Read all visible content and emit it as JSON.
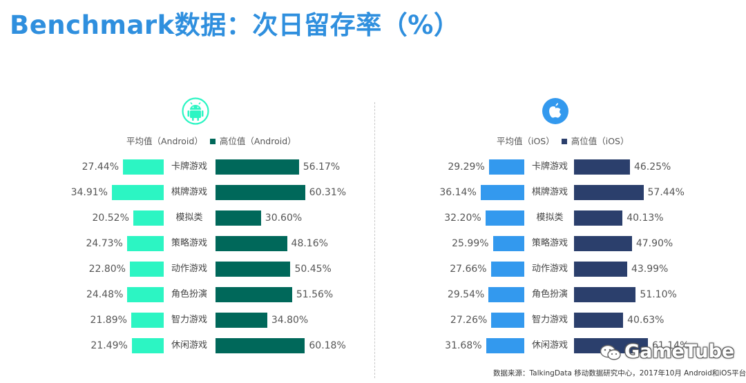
{
  "title": "Benchmark数据：次日留存率（%）",
  "colors": {
    "title": "#2f8fde",
    "android_avg": "#2cf5c3",
    "android_high": "#00685a",
    "ios_avg": "#3399ee",
    "ios_high": "#2b3f6c"
  },
  "chart_data": [
    {
      "type": "bar",
      "platform": "Android",
      "legend": {
        "avg": "平均值（Android）",
        "high": "高位值（Android）"
      },
      "categories": [
        "卡牌游戏",
        "棋牌游戏",
        "模拟类",
        "策略游戏",
        "动作游戏",
        "角色扮演",
        "智力游戏",
        "休闲游戏"
      ],
      "series": [
        {
          "name": "平均值（Android）",
          "values": [
            27.44,
            34.91,
            20.52,
            24.73,
            22.8,
            24.48,
            21.89,
            21.49
          ],
          "labels": [
            "27.44%",
            "34.91%",
            "20.52%",
            "24.73%",
            "22.80%",
            "24.48%",
            "21.89%",
            "21.49%"
          ]
        },
        {
          "name": "高位值（Android）",
          "values": [
            56.17,
            60.31,
            30.6,
            48.16,
            50.45,
            51.56,
            34.8,
            60.18
          ],
          "labels": [
            "56.17%",
            "60.31%",
            "30.60%",
            "48.16%",
            "50.45%",
            "51.56%",
            "34.80%",
            "60.18%"
          ]
        }
      ]
    },
    {
      "type": "bar",
      "platform": "iOS",
      "legend": {
        "avg": "平均值（iOS）",
        "high": "高位值（iOS）"
      },
      "categories": [
        "卡牌游戏",
        "棋牌游戏",
        "模拟类",
        "策略游戏",
        "动作游戏",
        "角色扮演",
        "智力游戏",
        "休闲游戏"
      ],
      "series": [
        {
          "name": "平均值（iOS）",
          "values": [
            29.29,
            36.14,
            32.2,
            25.99,
            27.66,
            29.54,
            27.26,
            31.68
          ],
          "labels": [
            "29.29%",
            "36.14%",
            "32.20%",
            "25.99%",
            "27.66%",
            "29.54%",
            "27.26%",
            "31.68%"
          ]
        },
        {
          "name": "高位值（iOS）",
          "values": [
            46.25,
            57.44,
            40.13,
            47.9,
            43.99,
            51.1,
            40.63,
            61.14
          ],
          "labels": [
            "46.25%",
            "57.44%",
            "40.13%",
            "47.90%",
            "43.99%",
            "51.10%",
            "40.63%",
            "61.14%"
          ]
        }
      ]
    }
  ],
  "icons": {
    "android": "android-logo-icon",
    "ios": "apple-logo-icon",
    "watermark": "wechat-icon"
  },
  "watermark": "GameTube",
  "source": "数据来源：TalkingData 移动数据研究中心，2017年10月 Android和iOS平台"
}
